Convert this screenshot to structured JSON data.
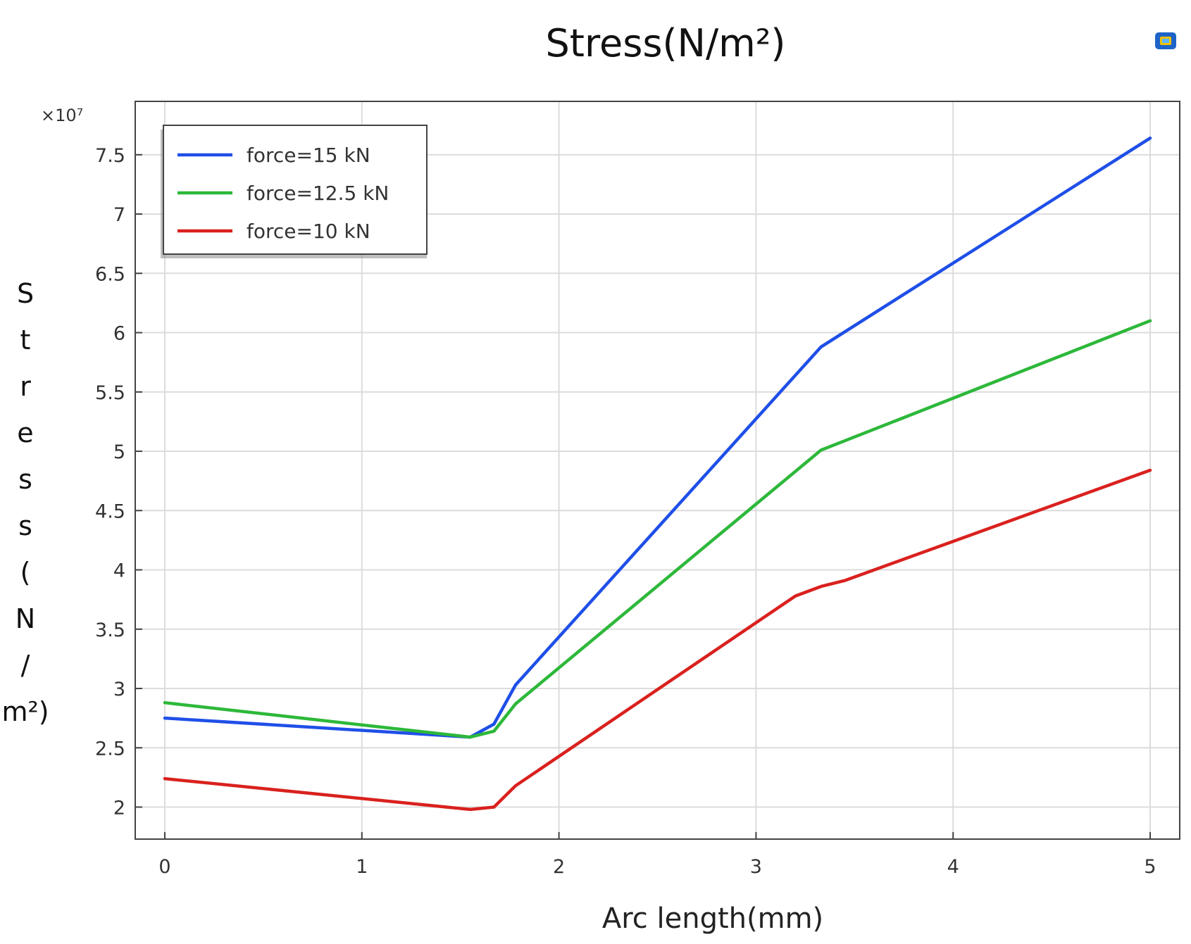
{
  "chart_data": {
    "type": "line",
    "title": "Stress(N/m²)",
    "xlabel": "Arc length(mm)",
    "ylabel": "Stress(N/m²)",
    "ylabel_chars": [
      "S",
      "t",
      "r",
      "e",
      "s",
      "s",
      "(",
      "N",
      "/",
      "m²)"
    ],
    "multiplier": "×10⁷",
    "xlim": [
      -0.15,
      5.15
    ],
    "ylim": [
      1.73,
      7.95
    ],
    "xticks": [
      0,
      1,
      2,
      3,
      4,
      5
    ],
    "xtick_labels": [
      "0",
      "1",
      "2",
      "3",
      "4",
      "5"
    ],
    "yticks": [
      2,
      2.5,
      3,
      3.5,
      4,
      4.5,
      5,
      5.5,
      6,
      6.5,
      7,
      7.5
    ],
    "ytick_labels": [
      "2",
      "2.5",
      "3",
      "3.5",
      "4",
      "4.5",
      "5",
      "5.5",
      "6",
      "6.5",
      "7",
      "7.5"
    ],
    "grid": true,
    "legend_position": "top-left",
    "series": [
      {
        "name": "force=15 kN",
        "color": "#1f4fe8",
        "x": [
          0,
          1.55,
          1.67,
          1.78,
          3.33,
          5
        ],
        "y": [
          2.75,
          2.59,
          2.7,
          3.03,
          5.88,
          7.64
        ]
      },
      {
        "name": "force=12.5 kN",
        "color": "#2db83a",
        "x": [
          0,
          1.55,
          1.67,
          1.78,
          3.33,
          5
        ],
        "y": [
          2.88,
          2.59,
          2.64,
          2.87,
          5.01,
          6.1
        ]
      },
      {
        "name": "force=10 kN",
        "color": "#d9211e",
        "x": [
          0,
          1.55,
          1.67,
          1.78,
          3.2,
          3.33,
          3.45,
          5
        ],
        "y": [
          2.24,
          1.98,
          2.0,
          2.18,
          3.78,
          3.86,
          3.91,
          4.84
        ]
      }
    ]
  }
}
